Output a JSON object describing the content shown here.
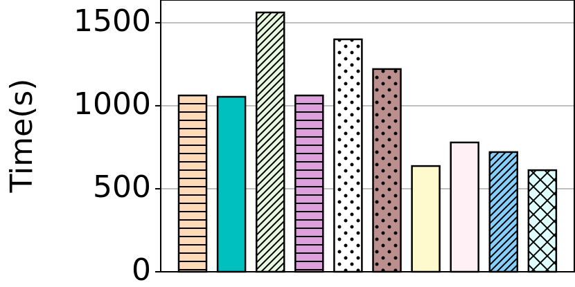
{
  "chart_data": {
    "type": "bar",
    "y_label": "Time(s)",
    "categories": [
      null,
      null,
      null,
      null,
      null,
      null,
      null,
      null,
      null,
      null
    ],
    "values": [
      1062,
      1054,
      1562,
      1062,
      1400,
      1221,
      637,
      779,
      721,
      612
    ],
    "colors": [
      "#ffdab9",
      "#00bfbf",
      "#e8f8e0",
      "#dda0dd",
      "#ffffff",
      "#bc8f8f",
      "#fffacd",
      "#fff0f5",
      "#87cefa",
      "#e0ffff"
    ],
    "hatches": [
      "-",
      null,
      "///",
      "-",
      ".",
      ".",
      null,
      "\\",
      "///",
      "x"
    ],
    "ylim": [
      0,
      1637
    ],
    "yticks": [
      0,
      500,
      1000,
      1500
    ],
    "grid": true
  }
}
